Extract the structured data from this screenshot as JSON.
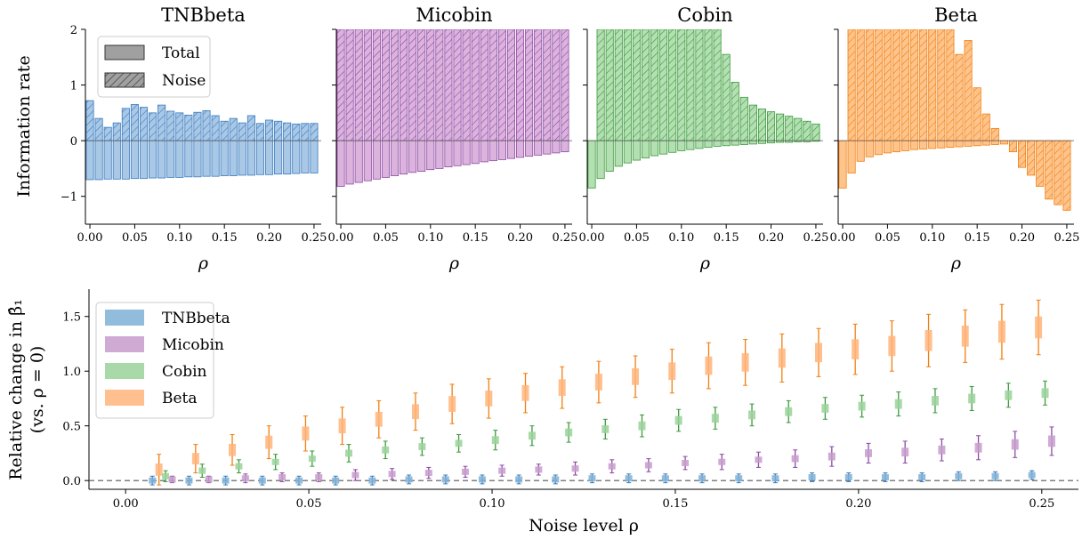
{
  "chart_data": [
    {
      "type": "bar",
      "title": "TNBbeta",
      "xlabel": "ρ",
      "ylabel": "Information rate",
      "xlim": [
        -0.005,
        0.258
      ],
      "ylim": [
        -1.5,
        2
      ],
      "xticks": [
        "0.00",
        "0.05",
        "0.10",
        "0.15",
        "0.20",
        "0.25"
      ],
      "yticks": [
        "−1",
        "0",
        "1",
        "2"
      ],
      "x": [
        0.0,
        0.01,
        0.02,
        0.03,
        0.04,
        0.05,
        0.06,
        0.07,
        0.08,
        0.09,
        0.1,
        0.11,
        0.12,
        0.13,
        0.14,
        0.15,
        0.16,
        0.17,
        0.18,
        0.19,
        0.2,
        0.21,
        0.22,
        0.23,
        0.24,
        0.25
      ],
      "series": [
        {
          "name": "Total",
          "values": [
            -0.7,
            -0.7,
            -0.69,
            -0.69,
            -0.69,
            -0.68,
            -0.68,
            -0.67,
            -0.67,
            -0.66,
            -0.66,
            -0.65,
            -0.65,
            -0.64,
            -0.64,
            -0.63,
            -0.63,
            -0.62,
            -0.62,
            -0.61,
            -0.61,
            -0.6,
            -0.6,
            -0.59,
            -0.58,
            -0.58
          ]
        },
        {
          "name": "Noise",
          "values": [
            0.72,
            0.4,
            0.24,
            0.32,
            0.58,
            0.65,
            0.6,
            0.5,
            0.64,
            0.53,
            0.5,
            0.46,
            0.51,
            0.54,
            0.45,
            0.35,
            0.4,
            0.32,
            0.45,
            0.31,
            0.37,
            0.35,
            0.32,
            0.3,
            0.31,
            0.31
          ]
        }
      ],
      "colors": {
        "fill": "#a8c8e6",
        "edge": "#3b7bbf"
      }
    },
    {
      "type": "bar",
      "title": "Micobin",
      "xlabel": "ρ",
      "xlim": [
        -0.005,
        0.258
      ],
      "ylim": [
        -1.5,
        2
      ],
      "xticks": [
        "0.00",
        "0.05",
        "0.10",
        "0.15",
        "0.20",
        "0.25"
      ],
      "x": [
        0.0,
        0.01,
        0.02,
        0.03,
        0.04,
        0.05,
        0.06,
        0.07,
        0.08,
        0.09,
        0.1,
        0.11,
        0.12,
        0.13,
        0.14,
        0.15,
        0.16,
        0.17,
        0.18,
        0.19,
        0.2,
        0.21,
        0.22,
        0.23,
        0.24,
        0.25
      ],
      "series": [
        {
          "name": "Total",
          "values": [
            -0.82,
            -0.78,
            -0.75,
            -0.72,
            -0.69,
            -0.66,
            -0.63,
            -0.6,
            -0.57,
            -0.55,
            -0.52,
            -0.5,
            -0.47,
            -0.45,
            -0.43,
            -0.41,
            -0.38,
            -0.36,
            -0.34,
            -0.32,
            -0.3,
            -0.28,
            -0.26,
            -0.24,
            -0.22,
            -0.2
          ]
        },
        {
          "name": "Noise",
          "values": [
            2,
            2,
            2,
            2,
            2,
            2,
            2,
            2,
            2,
            2,
            2,
            2,
            2,
            2,
            2,
            2,
            2,
            2,
            2,
            2,
            2,
            2,
            2,
            2,
            2,
            2
          ]
        }
      ],
      "colors": {
        "fill": "#dcb3dc",
        "edge": "#8c4aa5"
      }
    },
    {
      "type": "bar",
      "title": "Cobin",
      "xlabel": "ρ",
      "xlim": [
        -0.005,
        0.258
      ],
      "ylim": [
        -1.5,
        2
      ],
      "xticks": [
        "0.00",
        "0.05",
        "0.10",
        "0.15",
        "0.20",
        "0.25"
      ],
      "x": [
        0.0,
        0.01,
        0.02,
        0.03,
        0.04,
        0.05,
        0.06,
        0.07,
        0.08,
        0.09,
        0.1,
        0.11,
        0.12,
        0.13,
        0.14,
        0.15,
        0.16,
        0.17,
        0.18,
        0.19,
        0.2,
        0.21,
        0.22,
        0.23,
        0.24,
        0.25
      ],
      "series": [
        {
          "name": "Total",
          "values": [
            -0.85,
            -0.68,
            -0.55,
            -0.46,
            -0.4,
            -0.35,
            -0.31,
            -0.27,
            -0.24,
            -0.21,
            -0.18,
            -0.16,
            -0.14,
            -0.12,
            -0.1,
            -0.09,
            -0.08,
            -0.07,
            -0.06,
            -0.05,
            -0.04,
            -0.03,
            -0.03,
            -0.02,
            -0.02,
            -0.01
          ]
        },
        {
          "name": "Noise",
          "values": [
            0.0,
            2,
            2,
            2,
            2,
            2,
            2,
            2,
            2,
            2,
            2,
            2,
            2,
            2,
            2,
            1.55,
            1.05,
            0.78,
            0.64,
            0.57,
            0.52,
            0.48,
            0.44,
            0.4,
            0.35,
            0.3
          ]
        }
      ],
      "colors": {
        "fill": "#b3dfb3",
        "edge": "#3c9a3c"
      }
    },
    {
      "type": "bar",
      "title": "Beta",
      "xlabel": "ρ",
      "xlim": [
        -0.005,
        0.258
      ],
      "ylim": [
        -1.5,
        2
      ],
      "xticks": [
        "0.00",
        "0.05",
        "0.10",
        "0.15",
        "0.20",
        "0.25"
      ],
      "x": [
        0.0,
        0.01,
        0.02,
        0.03,
        0.04,
        0.05,
        0.06,
        0.07,
        0.08,
        0.09,
        0.1,
        0.11,
        0.12,
        0.13,
        0.14,
        0.15,
        0.16,
        0.17,
        0.18,
        0.19,
        0.2,
        0.21,
        0.22,
        0.23,
        0.24,
        0.25
      ],
      "series": [
        {
          "name": "Total",
          "values": [
            -0.85,
            -0.58,
            -0.37,
            -0.29,
            -0.25,
            -0.22,
            -0.2,
            -0.18,
            -0.16,
            -0.15,
            -0.14,
            -0.13,
            -0.12,
            -0.11,
            -0.1,
            -0.09,
            -0.08,
            -0.07,
            -0.06,
            -0.05,
            -0.04,
            -0.04,
            -0.03,
            -0.03,
            -0.02,
            -0.02
          ]
        },
        {
          "name": "Noise",
          "values": [
            0.0,
            2,
            2,
            2,
            2,
            2,
            2,
            2,
            2,
            2,
            2,
            2,
            2,
            1.55,
            1.8,
            0.95,
            0.48,
            0.22,
            0.0,
            -0.2,
            -0.48,
            -0.62,
            -0.82,
            -1.05,
            -1.15,
            -1.25
          ]
        }
      ],
      "colors": {
        "fill": "#ffc48c",
        "edge": "#f07f0f"
      }
    },
    {
      "type": "scatter",
      "xlabel": "Noise level ρ",
      "ylabel": [
        "Relative change in β̂₁",
        "(vs. ρ = 0)"
      ],
      "xlim": [
        -0.01,
        0.26
      ],
      "ylim": [
        -0.08,
        1.75
      ],
      "xticks": [
        "0.00",
        "0.05",
        "0.10",
        "0.15",
        "0.20",
        "0.25"
      ],
      "yticks": [
        "0.0",
        "0.5",
        "1.0",
        "1.5"
      ],
      "x": [
        0.01,
        0.02,
        0.03,
        0.04,
        0.05,
        0.06,
        0.07,
        0.08,
        0.09,
        0.1,
        0.11,
        0.12,
        0.13,
        0.14,
        0.15,
        0.16,
        0.17,
        0.18,
        0.19,
        0.2,
        0.21,
        0.22,
        0.23,
        0.24,
        0.25
      ],
      "series": [
        {
          "name": "TNBbeta",
          "color": "#7fb0d6",
          "edge": "#3b7bbf",
          "offset": -0.0027,
          "values": [
            0.0,
            0.0,
            0.0,
            0.0,
            0.0,
            0.0,
            0.0,
            0.01,
            0.01,
            0.01,
            0.01,
            0.01,
            0.02,
            0.02,
            0.02,
            0.02,
            0.02,
            0.02,
            0.03,
            0.03,
            0.03,
            0.03,
            0.04,
            0.04,
            0.05
          ],
          "err_low": [
            0.04,
            0.04,
            0.04,
            0.04,
            0.04,
            0.04,
            0.04,
            0.04,
            0.04,
            0.04,
            0.04,
            0.04,
            0.04,
            0.04,
            0.04,
            0.04,
            0.04,
            0.04,
            0.04,
            0.04,
            0.04,
            0.04,
            0.04,
            0.04,
            0.04
          ],
          "err_high": [
            0.04,
            0.04,
            0.04,
            0.04,
            0.04,
            0.04,
            0.04,
            0.04,
            0.04,
            0.04,
            0.04,
            0.04,
            0.04,
            0.04,
            0.04,
            0.04,
            0.04,
            0.04,
            0.04,
            0.04,
            0.04,
            0.04,
            0.04,
            0.04,
            0.04
          ]
        },
        {
          "name": "Micobin",
          "color": "#c79ccd",
          "edge": "#8c4aa5",
          "offset": 0.0027,
          "values": [
            0.01,
            0.01,
            0.02,
            0.03,
            0.03,
            0.05,
            0.06,
            0.07,
            0.08,
            0.09,
            0.1,
            0.11,
            0.13,
            0.14,
            0.16,
            0.17,
            0.19,
            0.2,
            0.22,
            0.25,
            0.26,
            0.28,
            0.3,
            0.33,
            0.36
          ],
          "err_low": [
            0.03,
            0.03,
            0.04,
            0.04,
            0.04,
            0.05,
            0.05,
            0.05,
            0.05,
            0.05,
            0.05,
            0.06,
            0.06,
            0.06,
            0.06,
            0.07,
            0.07,
            0.08,
            0.09,
            0.09,
            0.1,
            0.1,
            0.11,
            0.12,
            0.13
          ],
          "err_high": [
            0.03,
            0.03,
            0.04,
            0.04,
            0.04,
            0.05,
            0.05,
            0.05,
            0.05,
            0.05,
            0.05,
            0.06,
            0.06,
            0.06,
            0.06,
            0.07,
            0.07,
            0.08,
            0.09,
            0.09,
            0.1,
            0.1,
            0.11,
            0.12,
            0.13
          ]
        },
        {
          "name": "Cobin",
          "color": "#9ad29a",
          "edge": "#3c9a3c",
          "offset": 0.0009,
          "values": [
            0.04,
            0.09,
            0.13,
            0.17,
            0.2,
            0.25,
            0.28,
            0.31,
            0.34,
            0.37,
            0.41,
            0.44,
            0.47,
            0.5,
            0.55,
            0.57,
            0.6,
            0.63,
            0.66,
            0.68,
            0.7,
            0.73,
            0.75,
            0.78,
            0.8
          ],
          "err_low": [
            0.05,
            0.06,
            0.06,
            0.07,
            0.07,
            0.08,
            0.08,
            0.08,
            0.08,
            0.09,
            0.09,
            0.09,
            0.09,
            0.1,
            0.1,
            0.1,
            0.1,
            0.1,
            0.1,
            0.1,
            0.11,
            0.11,
            0.11,
            0.11,
            0.11
          ],
          "err_high": [
            0.05,
            0.06,
            0.06,
            0.07,
            0.07,
            0.08,
            0.08,
            0.08,
            0.08,
            0.09,
            0.09,
            0.09,
            0.09,
            0.1,
            0.1,
            0.1,
            0.1,
            0.1,
            0.1,
            0.1,
            0.11,
            0.11,
            0.11,
            0.11,
            0.11
          ]
        },
        {
          "name": "Beta",
          "color": "#ffb47a",
          "edge": "#f07f0f",
          "offset": -0.0009,
          "values": [
            0.1,
            0.2,
            0.28,
            0.35,
            0.43,
            0.5,
            0.56,
            0.63,
            0.7,
            0.75,
            0.8,
            0.85,
            0.9,
            0.95,
            1.0,
            1.05,
            1.08,
            1.12,
            1.17,
            1.2,
            1.23,
            1.28,
            1.32,
            1.36,
            1.4
          ],
          "err_low": [
            0.14,
            0.13,
            0.14,
            0.15,
            0.16,
            0.17,
            0.17,
            0.17,
            0.18,
            0.18,
            0.18,
            0.19,
            0.19,
            0.19,
            0.2,
            0.21,
            0.21,
            0.22,
            0.22,
            0.23,
            0.23,
            0.24,
            0.24,
            0.25,
            0.25
          ],
          "err_high": [
            0.14,
            0.13,
            0.14,
            0.15,
            0.16,
            0.17,
            0.17,
            0.17,
            0.18,
            0.18,
            0.18,
            0.19,
            0.19,
            0.19,
            0.2,
            0.21,
            0.21,
            0.22,
            0.22,
            0.23,
            0.23,
            0.24,
            0.24,
            0.25,
            0.25
          ]
        }
      ],
      "reference_line": 0,
      "legend": "top-left"
    }
  ],
  "legend_top": {
    "total_label": "Total",
    "noise_label": "Noise"
  }
}
